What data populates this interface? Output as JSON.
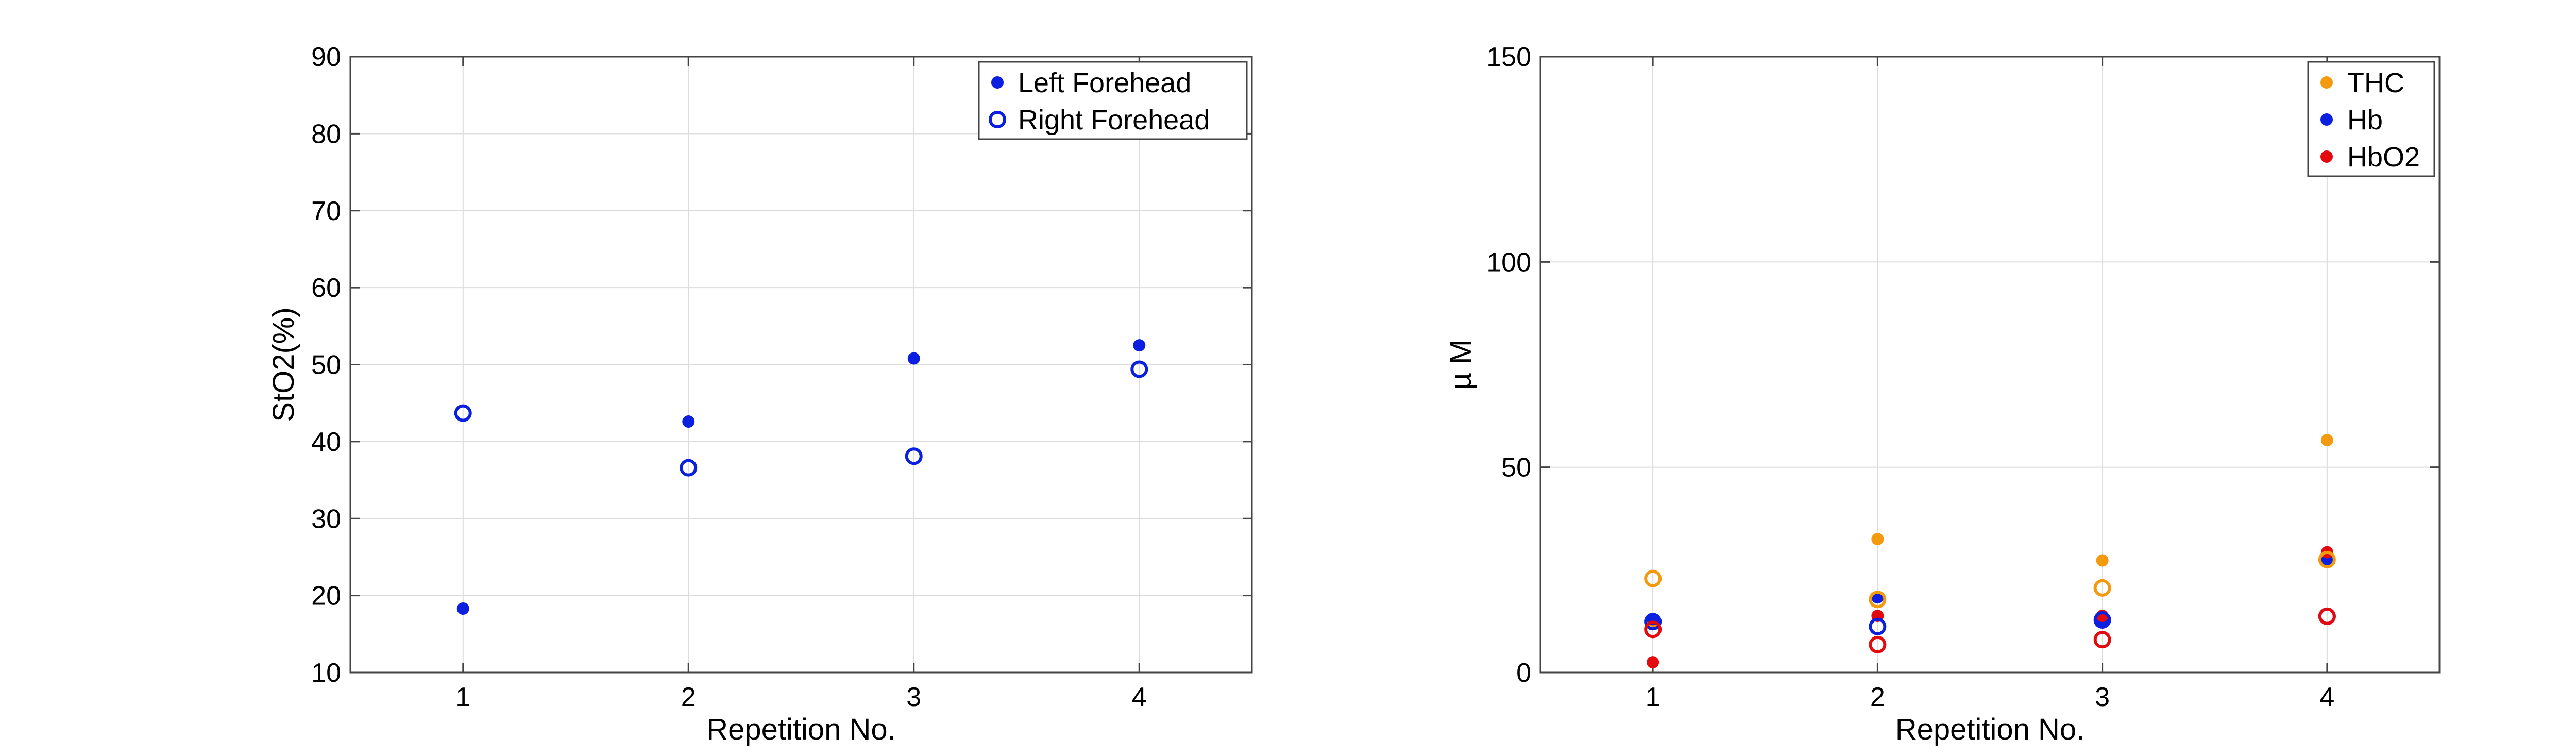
{
  "colors": {
    "blue": "#0b1fe0",
    "orange": "#f39a0f",
    "red": "#e3090d",
    "grid": "#dcdcdc",
    "axis": "#444444"
  },
  "chart_data": [
    {
      "type": "scatter",
      "title": "",
      "xlabel": "Repetition No.",
      "ylabel": "StO2(%)",
      "xlim": [
        0.5,
        4.5
      ],
      "ylim": [
        10,
        90
      ],
      "xticks": [
        "1",
        "2",
        "3",
        "4"
      ],
      "yticks": [
        "10",
        "20",
        "30",
        "40",
        "50",
        "60",
        "70",
        "80",
        "90"
      ],
      "grid": true,
      "legend_position": "top-right",
      "series": [
        {
          "name": "Left Forehead",
          "marker": "filled",
          "color": "#0b1fe0",
          "x": [
            1,
            2,
            3,
            4
          ],
          "y": [
            18.3,
            42.6,
            50.8,
            52.5
          ]
        },
        {
          "name": "Right Forehead",
          "marker": "open",
          "color": "#0b1fe0",
          "x": [
            1,
            2,
            3,
            4
          ],
          "y": [
            43.7,
            36.6,
            38.1,
            49.4
          ]
        }
      ]
    },
    {
      "type": "scatter",
      "title": "",
      "xlabel": "Repetition No.",
      "ylabel": "µ M",
      "xlim": [
        0.5,
        4.5
      ],
      "ylim": [
        0,
        150
      ],
      "xticks": [
        "1",
        "2",
        "3",
        "4"
      ],
      "yticks": [
        "0",
        "50",
        "100",
        "150"
      ],
      "grid": true,
      "legend_position": "top-right",
      "series": [
        {
          "name": "THC",
          "marker": "filled",
          "color": "#f39a0f",
          "x": [
            1,
            2,
            3,
            4
          ],
          "y": [
            12.0,
            32.5,
            27.3,
            56.6
          ]
        },
        {
          "name": "Hb",
          "marker": "filled",
          "color": "#0b1fe0",
          "x": [
            1,
            2,
            3,
            4
          ],
          "y": [
            13.0,
            18.3,
            12.5,
            27.5
          ]
        },
        {
          "name": "HbO2",
          "marker": "filled",
          "color": "#e3090d",
          "x": [
            1,
            2,
            3,
            4
          ],
          "y": [
            2.5,
            13.8,
            13.8,
            29.3
          ]
        },
        {
          "name": "",
          "marker": "open",
          "color": "#f39a0f",
          "x": [
            1,
            2,
            3,
            4
          ],
          "y": [
            22.9,
            17.8,
            20.6,
            27.5
          ]
        },
        {
          "name": "",
          "marker": "open",
          "color": "#0b1fe0",
          "x": [
            1,
            2,
            3,
            4
          ],
          "y": [
            12.4,
            11.2,
            12.8,
            13.7
          ]
        },
        {
          "name": "",
          "marker": "open",
          "color": "#e3090d",
          "x": [
            1,
            2,
            3,
            4
          ],
          "y": [
            10.5,
            6.8,
            8.0,
            13.7
          ]
        }
      ]
    }
  ]
}
